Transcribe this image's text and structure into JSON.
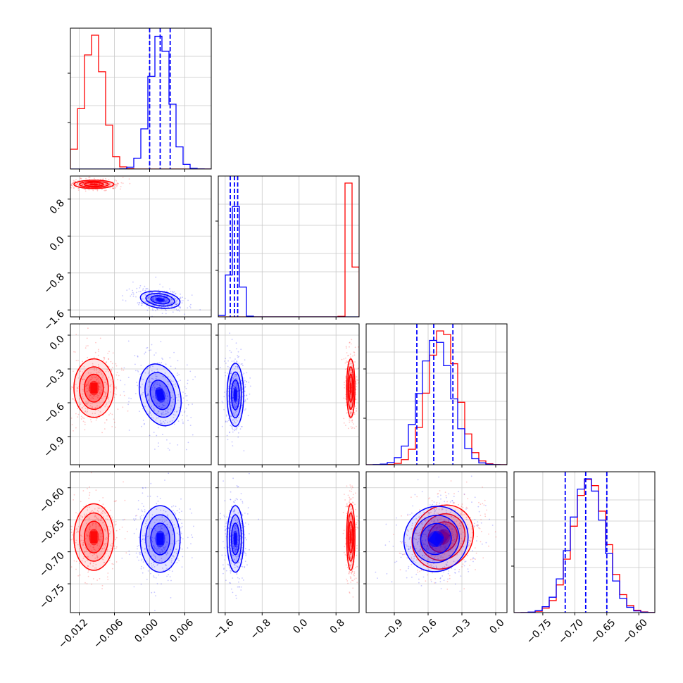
{
  "chart_data": {
    "type": "corner",
    "parameters": [
      {
        "range": [
          -0.0135,
          0.0105
        ],
        "ticks": [
          "-0.012",
          "-0.006",
          "0.000",
          "0.006"
        ],
        "tick_values": [
          -0.012,
          -0.006,
          0.0,
          0.006
        ]
      },
      {
        "range": [
          -1.75,
          1.3
        ],
        "ticks": [
          "-1.6",
          "-0.8",
          "0.0",
          "0.8"
        ],
        "tick_values": [
          -1.6,
          -0.8,
          0.0,
          0.8
        ]
      },
      {
        "range": [
          -1.15,
          0.1
        ],
        "ticks": [
          "-0.9",
          "-0.6",
          "-0.3",
          "0.0"
        ],
        "tick_values": [
          -0.9,
          -0.6,
          -0.3,
          0.0
        ]
      },
      {
        "range": [
          -0.795,
          -0.575
        ],
        "ticks": [
          "-0.75",
          "-0.70",
          "-0.65",
          "-0.60"
        ],
        "tick_values": [
          -0.75,
          -0.7,
          -0.65,
          -0.6
        ]
      }
    ],
    "series": [
      {
        "color": "#ff0000",
        "means": [
          -0.0095,
          1.12,
          -0.47,
          -0.677
        ],
        "stds": [
          0.0017,
          0.045,
          0.13,
          0.026
        ],
        "show_quantiles": false
      },
      {
        "color": "#0000ff",
        "means": [
          0.0018,
          -1.38,
          -0.53,
          -0.68
        ],
        "stds": [
          0.0017,
          0.09,
          0.14,
          0.026
        ],
        "show_quantiles": true,
        "quantiles": [
          [
            0.0,
            0.0018,
            0.0035
          ],
          [
            -1.49,
            -1.4,
            -1.33
          ],
          [
            -0.7,
            -0.55,
            -0.38
          ],
          [
            -0.715,
            -0.683,
            -0.65
          ]
        ]
      }
    ],
    "grid": true,
    "legend": "none"
  }
}
